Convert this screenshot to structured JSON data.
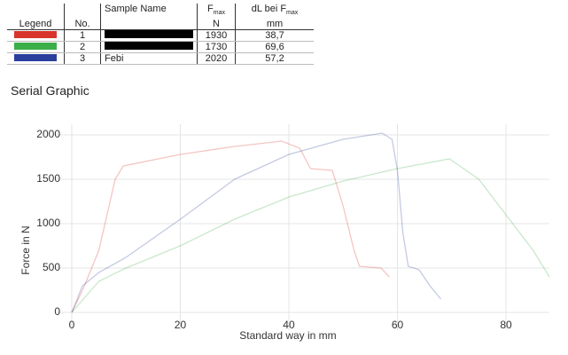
{
  "table": {
    "headers": {
      "legend": "Legend",
      "no": "No.",
      "name": "Sample Name",
      "fmax": "F",
      "fmax_sub": "max",
      "fmax_unit": "N",
      "dl": "dL bei F",
      "dl_sub": "max",
      "dl_unit": "mm"
    },
    "rows": [
      {
        "no": 1,
        "fmax": 1930,
        "dl": "38,7"
      },
      {
        "no": 2,
        "fmax": 1730,
        "dl": "69,6"
      },
      {
        "no": 3,
        "name": "Febi",
        "fmax": 2020,
        "dl": "57,2"
      }
    ]
  },
  "section_title": "Serial Graphic",
  "chart_data": {
    "type": "line",
    "xlabel": "Standard way in mm",
    "ylabel": "Force in N",
    "xlim": [
      -3,
      88
    ],
    "ylim": [
      -150,
      2100
    ],
    "xticks": [
      0,
      20,
      40,
      60,
      80
    ],
    "yticks": [
      0,
      500,
      1000,
      1500,
      2000
    ],
    "grid": true,
    "series": [
      {
        "color": "#d8342c",
        "x": [
          0,
          2,
          5,
          8,
          9.5,
          20,
          30,
          38.7,
          42,
          44,
          48,
          50,
          52,
          53,
          57,
          58.5
        ],
        "values": [
          0,
          250,
          700,
          1500,
          1650,
          1780,
          1870,
          1930,
          1850,
          1620,
          1600,
          1200,
          700,
          520,
          500,
          400
        ]
      },
      {
        "color": "#3cae48",
        "x": [
          0,
          5,
          10,
          20,
          30,
          40,
          50,
          60,
          69.6,
          75,
          80,
          85,
          88
        ],
        "values": [
          0,
          350,
          500,
          750,
          1050,
          1300,
          1480,
          1620,
          1730,
          1500,
          1100,
          700,
          400
        ]
      },
      {
        "color": "#2b3f9c",
        "x": [
          0,
          2,
          5,
          10,
          20,
          30,
          40,
          50,
          57.2,
          59,
          60,
          61,
          62,
          64,
          66,
          68
        ],
        "values": [
          0,
          300,
          450,
          620,
          1050,
          1500,
          1780,
          1950,
          2020,
          1950,
          1600,
          900,
          520,
          480,
          300,
          150
        ]
      }
    ]
  }
}
